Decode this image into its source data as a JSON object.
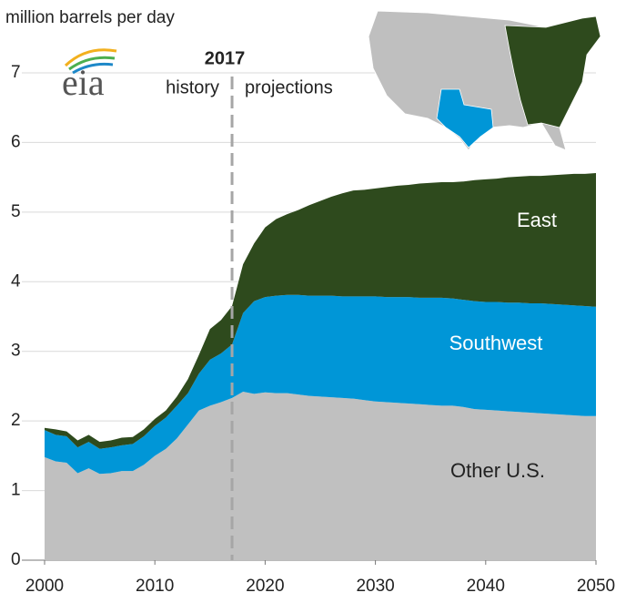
{
  "chart_data": {
    "type": "stacked_area",
    "y_axis_label": "million barrels per day",
    "logo": "eia",
    "annotation": {
      "x": 2017,
      "label": 2017,
      "left": "history",
      "right": "projections"
    },
    "x": [
      2000,
      2001,
      2002,
      2003,
      2004,
      2005,
      2006,
      2007,
      2008,
      2009,
      2010,
      2011,
      2012,
      2013,
      2014,
      2015,
      2016,
      2017,
      2018,
      2019,
      2020,
      2021,
      2022,
      2023,
      2024,
      2025,
      2026,
      2027,
      2028,
      2029,
      2030,
      2031,
      2032,
      2033,
      2034,
      2035,
      2036,
      2037,
      2038,
      2039,
      2040,
      2041,
      2042,
      2043,
      2044,
      2045,
      2046,
      2047,
      2048,
      2049,
      2050
    ],
    "series": [
      {
        "name": "Other U.S.",
        "color": "#c0c0c0",
        "values": [
          1.48,
          1.42,
          1.4,
          1.25,
          1.32,
          1.24,
          1.25,
          1.28,
          1.28,
          1.37,
          1.5,
          1.6,
          1.75,
          1.95,
          2.15,
          2.22,
          2.27,
          2.33,
          2.42,
          2.39,
          2.41,
          2.4,
          2.4,
          2.38,
          2.36,
          2.35,
          2.34,
          2.33,
          2.32,
          2.3,
          2.28,
          2.27,
          2.26,
          2.25,
          2.24,
          2.23,
          2.22,
          2.22,
          2.2,
          2.17,
          2.16,
          2.15,
          2.14,
          2.13,
          2.12,
          2.11,
          2.1,
          2.09,
          2.08,
          2.07,
          2.07
        ]
      },
      {
        "name": "Southwest",
        "color": "#0096d7",
        "values": [
          0.39,
          0.38,
          0.38,
          0.37,
          0.38,
          0.36,
          0.37,
          0.37,
          0.39,
          0.41,
          0.43,
          0.45,
          0.47,
          0.45,
          0.53,
          0.66,
          0.7,
          0.77,
          1.13,
          1.33,
          1.37,
          1.4,
          1.41,
          1.43,
          1.44,
          1.45,
          1.46,
          1.46,
          1.47,
          1.49,
          1.51,
          1.51,
          1.52,
          1.53,
          1.53,
          1.54,
          1.55,
          1.54,
          1.54,
          1.55,
          1.55,
          1.56,
          1.56,
          1.57,
          1.57,
          1.58,
          1.58,
          1.58,
          1.58,
          1.58,
          1.57
        ]
      },
      {
        "name": "East",
        "color": "#2e4a1d",
        "values": [
          0.03,
          0.08,
          0.07,
          0.1,
          0.1,
          0.1,
          0.1,
          0.11,
          0.1,
          0.1,
          0.1,
          0.1,
          0.13,
          0.2,
          0.27,
          0.44,
          0.48,
          0.55,
          0.7,
          0.83,
          1.0,
          1.1,
          1.16,
          1.22,
          1.3,
          1.36,
          1.42,
          1.48,
          1.52,
          1.53,
          1.55,
          1.58,
          1.6,
          1.61,
          1.64,
          1.65,
          1.66,
          1.67,
          1.7,
          1.74,
          1.76,
          1.77,
          1.8,
          1.81,
          1.83,
          1.83,
          1.85,
          1.87,
          1.89,
          1.9,
          1.92
        ]
      }
    ],
    "xlim": [
      2000,
      2050
    ],
    "xticks": [
      2000,
      2010,
      2020,
      2030,
      2040,
      2050
    ],
    "ylim": [
      0,
      7
    ],
    "yticks": [
      0,
      1,
      2,
      3,
      4,
      5,
      6,
      7
    ],
    "grid": true
  }
}
